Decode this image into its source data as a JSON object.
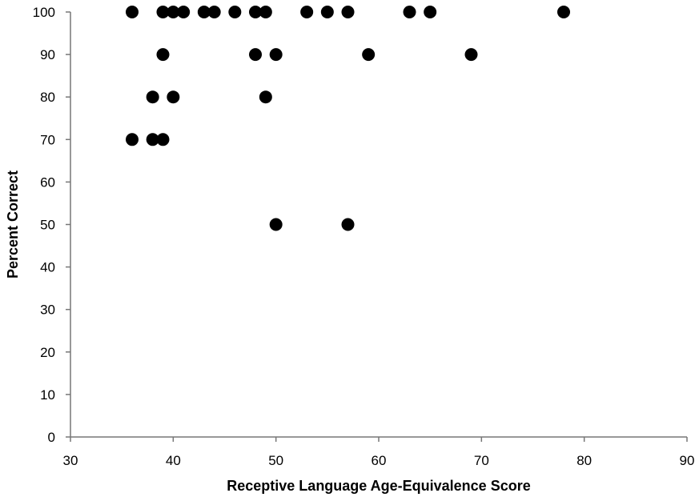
{
  "chart_data": {
    "type": "scatter",
    "title": "",
    "xlabel": "Receptive Language Age-Equivalence Score",
    "ylabel": "Percent Correct",
    "xlim": [
      30,
      90
    ],
    "ylim": [
      0,
      100
    ],
    "x_ticks": [
      "30",
      "40",
      "50",
      "60",
      "70",
      "80",
      "90"
    ],
    "y_ticks": [
      "0",
      "10",
      "20",
      "30",
      "40",
      "50",
      "60",
      "70",
      "80",
      "90",
      "100"
    ],
    "grid": false,
    "legend": "none",
    "marker_color": "#000000",
    "series": [
      {
        "points": [
          {
            "x": 36,
            "y": 100
          },
          {
            "x": 39,
            "y": 100
          },
          {
            "x": 40,
            "y": 100
          },
          {
            "x": 41,
            "y": 100
          },
          {
            "x": 43,
            "y": 100
          },
          {
            "x": 44,
            "y": 100
          },
          {
            "x": 46,
            "y": 100
          },
          {
            "x": 48,
            "y": 100
          },
          {
            "x": 49,
            "y": 100
          },
          {
            "x": 53,
            "y": 100
          },
          {
            "x": 55,
            "y": 100
          },
          {
            "x": 57,
            "y": 100
          },
          {
            "x": 63,
            "y": 100
          },
          {
            "x": 65,
            "y": 100
          },
          {
            "x": 78,
            "y": 100
          },
          {
            "x": 39,
            "y": 90
          },
          {
            "x": 48,
            "y": 90
          },
          {
            "x": 50,
            "y": 90
          },
          {
            "x": 59,
            "y": 90
          },
          {
            "x": 69,
            "y": 90
          },
          {
            "x": 38,
            "y": 80
          },
          {
            "x": 40,
            "y": 80
          },
          {
            "x": 49,
            "y": 80
          },
          {
            "x": 36,
            "y": 70
          },
          {
            "x": 38,
            "y": 70
          },
          {
            "x": 39,
            "y": 70
          },
          {
            "x": 50,
            "y": 50
          },
          {
            "x": 57,
            "y": 50
          }
        ]
      }
    ]
  }
}
